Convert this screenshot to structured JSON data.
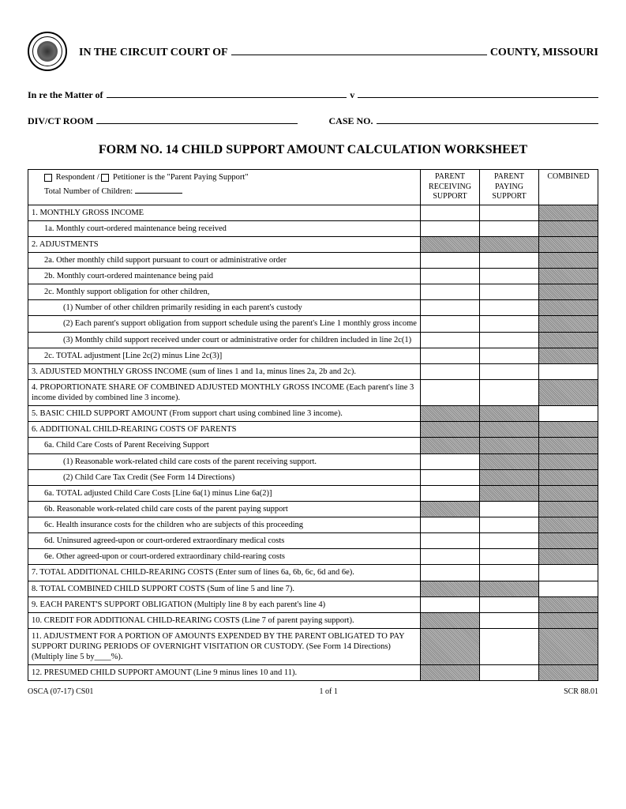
{
  "header": {
    "court_prefix": "IN THE CIRCUIT COURT OF",
    "court_suffix": "COUNTY, MISSOURI",
    "matter_label": "In re the Matter of",
    "v": "v",
    "div_label": "DIV/CT ROOM",
    "case_label": "CASE NO."
  },
  "title": "FORM NO. 14 CHILD SUPPORT AMOUNT CALCULATION WORKSHEET",
  "col_headers": {
    "receiving": "PARENT RECEIVING SUPPORT",
    "paying": "PARENT PAYING SUPPORT",
    "combined": "COMBINED"
  },
  "row0": {
    "respondent": "Respondent  /",
    "petitioner": "Petitioner is the \"Parent Paying Support\"",
    "children": "Total Number of Children:"
  },
  "rows": [
    {
      "t": "1. MONTHLY GROSS INCOME",
      "i": 0,
      "s": [
        0,
        0,
        1
      ]
    },
    {
      "t": "1a. Monthly court-ordered maintenance being received",
      "i": 1,
      "s": [
        0,
        0,
        1
      ]
    },
    {
      "t": "2. ADJUSTMENTS",
      "i": 0,
      "s": [
        1,
        1,
        1
      ]
    },
    {
      "t": "2a. Other monthly child support pursuant to court or administrative order",
      "i": 1,
      "s": [
        0,
        0,
        1
      ]
    },
    {
      "t": "2b. Monthly court-ordered maintenance being paid",
      "i": 1,
      "s": [
        0,
        0,
        1
      ]
    },
    {
      "t": "2c. Monthly support obligation for other children,",
      "i": 1,
      "s": [
        0,
        0,
        1
      ]
    },
    {
      "t": "(1) Number of other children primarily residing in each parent's custody",
      "i": 2,
      "s": [
        0,
        0,
        1
      ]
    },
    {
      "t": "(2) Each parent's support obligation from support schedule using the parent's Line 1  monthly gross income",
      "i": 2,
      "s": [
        0,
        0,
        1
      ]
    },
    {
      "t": "(3) Monthly child support received under court or administrative order for children  included in line 2c(1)",
      "i": 2,
      "s": [
        0,
        0,
        1
      ]
    },
    {
      "t": "2c. TOTAL adjustment [Line 2c(2) minus Line 2c(3)]",
      "i": 1,
      "s": [
        0,
        0,
        1
      ]
    },
    {
      "t": "3. ADJUSTED MONTHLY GROSS INCOME (sum of lines 1 and 1a, minus lines 2a, 2b  and 2c).",
      "i": 0,
      "s": [
        0,
        0,
        0
      ]
    },
    {
      "t": "4. PROPORTIONATE SHARE OF COMBINED ADJUSTED MONTHLY GROSS  INCOME (Each parent's line 3 income divided by combined line 3 income).",
      "i": 0,
      "s": [
        0,
        0,
        1
      ]
    },
    {
      "t": "5. BASIC CHILD SUPPORT AMOUNT\n(From support chart using combined line 3 income).",
      "i": 0,
      "s": [
        1,
        1,
        0
      ]
    },
    {
      "t": "6. ADDITIONAL CHILD-REARING COSTS OF PARENTS",
      "i": 0,
      "s": [
        1,
        1,
        1
      ]
    },
    {
      "t": "6a. Child Care Costs of Parent Receiving Support",
      "i": 1,
      "s": [
        1,
        1,
        1
      ]
    },
    {
      "t": "(1) Reasonable work-related child care costs of the parent receiving support.",
      "i": 2,
      "s": [
        0,
        1,
        1
      ]
    },
    {
      "t": "(2) Child Care Tax Credit (See Form 14 Directions)",
      "i": 2,
      "s": [
        0,
        1,
        1
      ]
    },
    {
      "t": "6a. TOTAL adjusted Child Care Costs [Line 6a(1) minus Line 6a(2)]",
      "i": 1,
      "s": [
        0,
        1,
        1
      ]
    },
    {
      "t": "6b. Reasonable work-related child care costs of the parent paying support",
      "i": 1,
      "s": [
        1,
        0,
        1
      ]
    },
    {
      "t": "6c. Health insurance costs for the children who are subjects of this proceeding",
      "i": 1,
      "s": [
        0,
        0,
        1
      ]
    },
    {
      "t": "6d. Uninsured agreed-upon or court-ordered extraordinary medical costs",
      "i": 1,
      "s": [
        0,
        0,
        1
      ]
    },
    {
      "t": "6e. Other agreed-upon or court-ordered extraordinary child-rearing costs",
      "i": 1,
      "s": [
        0,
        0,
        1
      ]
    },
    {
      "t": "7. TOTAL ADDITIONAL CHILD-REARING COSTS (Enter sum of lines 6a, 6b, 6c, 6d  and 6e).",
      "i": 0,
      "s": [
        0,
        0,
        0
      ]
    },
    {
      "t": "8. TOTAL COMBINED CHILD SUPPORT COSTS (Sum of line 5 and line 7).",
      "i": 0,
      "s": [
        1,
        1,
        0
      ]
    },
    {
      "t": "9. EACH PARENT'S SUPPORT OBLIGATION (Multiply line 8 by each parent's line 4)",
      "i": 0,
      "s": [
        0,
        0,
        1
      ]
    },
    {
      "t": "10. CREDIT FOR ADDITIONAL CHILD-REARING COSTS (Line 7 of parent paying  support).",
      "i": 0,
      "s": [
        1,
        0,
        1
      ]
    },
    {
      "t": "11. ADJUSTMENT FOR A PORTION OF AMOUNTS EXPENDED BY THE PARENT  OBLIGATED TO PAY SUPPORT DURING PERIODS OF OVERNIGHT VISITATION OR CUSTODY.  (See Form 14 Directions) (Multiply line 5 by____%).",
      "i": 0,
      "s": [
        1,
        0,
        1
      ]
    },
    {
      "t": "12. PRESUMED CHILD SUPPORT AMOUNT (Line 9 minus lines 10 and 11).",
      "i": 0,
      "s": [
        1,
        0,
        1
      ]
    }
  ],
  "footer": {
    "left": "OSCA (07-17) CS01",
    "center": "1 of 1",
    "right": "SCR 88.01"
  }
}
